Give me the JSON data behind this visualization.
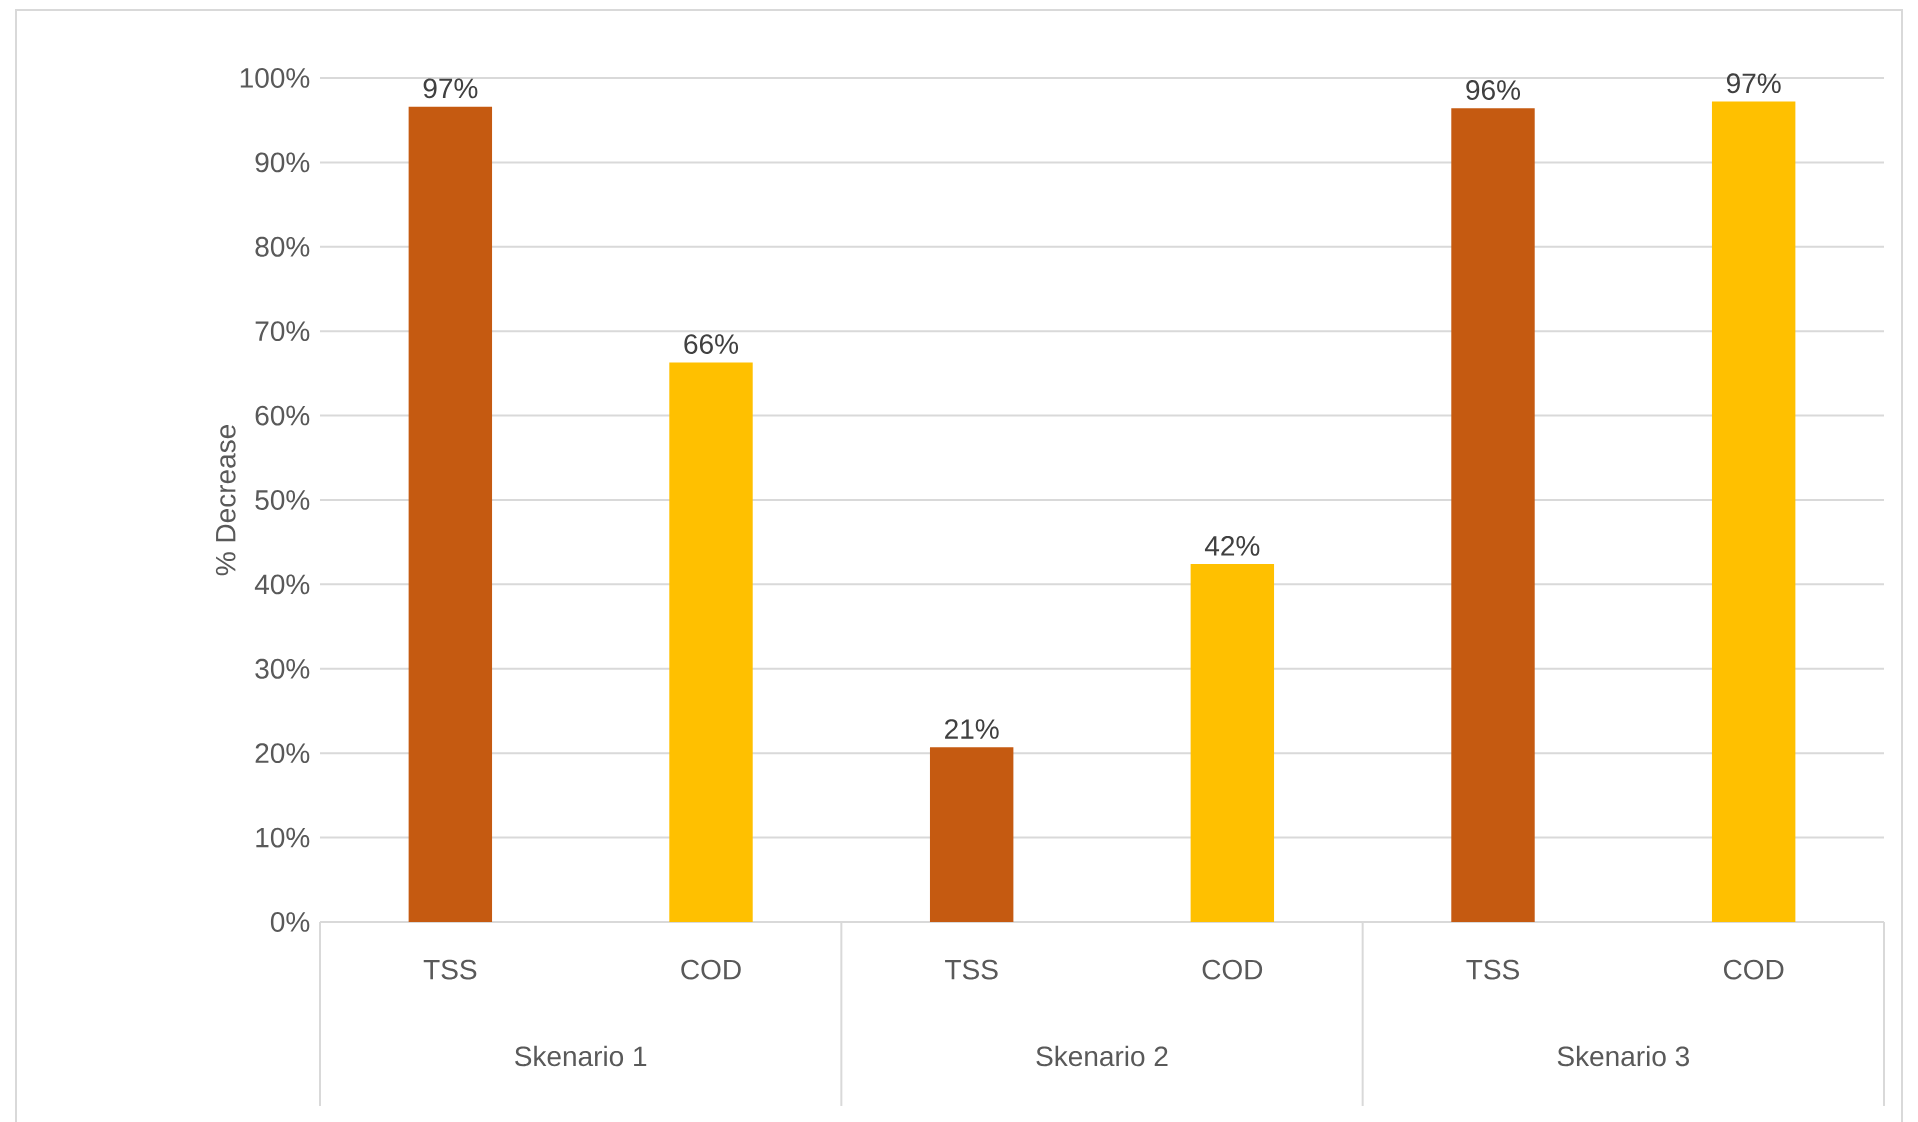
{
  "chart_data": {
    "type": "bar",
    "ylabel": "% Decrease",
    "categories": [
      "Skenario 1",
      "Skenario 2",
      "Skenario 3"
    ],
    "series": [
      {
        "name": "TSS",
        "color": "#c55a11",
        "values": [
          96.6,
          20.7,
          96.4
        ],
        "value_labels": [
          "97%",
          "21%",
          "96%"
        ]
      },
      {
        "name": "COD",
        "color": "#ffc000",
        "values": [
          66.3,
          42.4,
          97.2
        ],
        "value_labels": [
          "66%",
          "42%",
          "97%"
        ]
      }
    ],
    "ylim": [
      0,
      100
    ],
    "yticks": [
      {
        "value": 0,
        "label": "0%"
      },
      {
        "value": 10,
        "label": "10%"
      },
      {
        "value": 20,
        "label": "20%"
      },
      {
        "value": 30,
        "label": "30%"
      },
      {
        "value": 40,
        "label": "40%"
      },
      {
        "value": 50,
        "label": "50%"
      },
      {
        "value": 60,
        "label": "60%"
      },
      {
        "value": 70,
        "label": "70%"
      },
      {
        "value": 80,
        "label": "80%"
      },
      {
        "value": 90,
        "label": "90%"
      },
      {
        "value": 100,
        "label": "100%"
      }
    ],
    "grid": "y",
    "legend": false
  }
}
